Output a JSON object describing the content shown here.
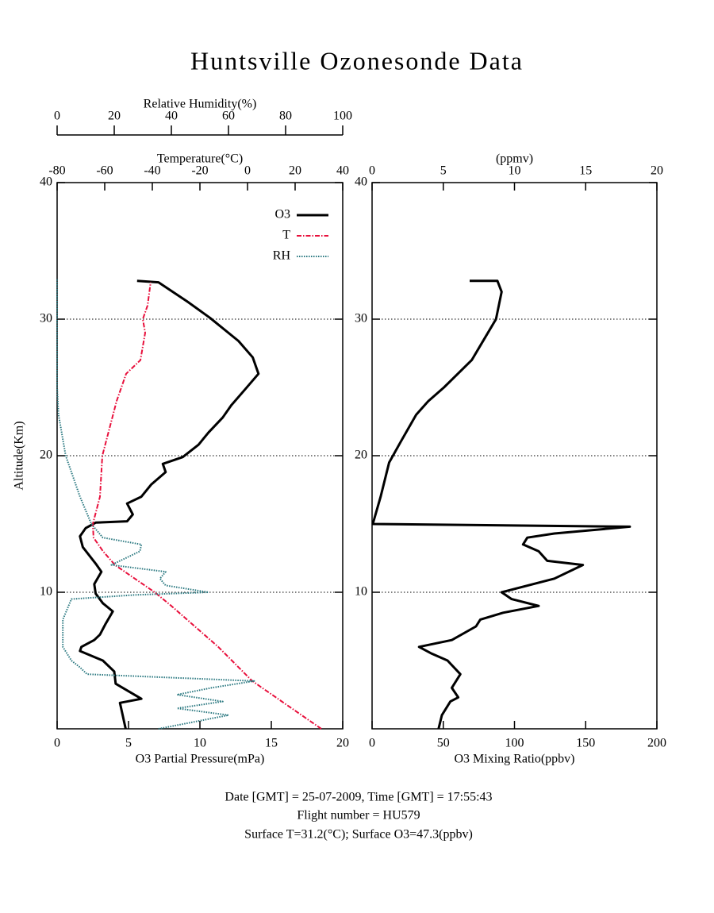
{
  "title": "Huntsville Ozonesonde Data",
  "footer": [
    "Date [GMT] = 25-07-2009,  Time [GMT] = 17:55:43",
    "Flight number = HU579",
    "Surface T=31.2(°C); Surface O3=47.3(ppbv)"
  ],
  "chart_data": [
    {
      "type": "line",
      "ylabel": "Altitude(Km)",
      "ylim": [
        0,
        40
      ],
      "yticks": [
        10,
        20,
        30,
        40
      ],
      "grid": true,
      "legend": "upper right",
      "xlabel": "O3 Partial Pressure(mPa)",
      "xlim": [
        0,
        20
      ],
      "xticks": [
        0,
        5,
        10,
        15,
        20
      ],
      "x2label": "Temperature(°C)",
      "x2lim": [
        -80,
        40
      ],
      "x2ticks": [
        -80,
        -60,
        -40,
        -20,
        0,
        20,
        40
      ],
      "x3label": "Relative Humidity(%)",
      "x3lim": [
        0,
        100
      ],
      "x3ticks": [
        0,
        20,
        40,
        60,
        80,
        100
      ],
      "series": [
        {
          "name": "O3",
          "color": "#000000",
          "style": "solid",
          "axis": "x",
          "altitude": [
            0,
            1.9,
            2.2,
            3.3,
            4.2,
            5.0,
            5.7,
            6.0,
            6.5,
            6.9,
            7.7,
            8.6,
            9.2,
            9.9,
            10.6,
            11.5,
            12.1,
            13.3,
            14.1,
            14.7,
            15.1,
            15.2,
            15.7,
            16.5,
            17.0,
            17.9,
            18.8,
            19.4,
            19.9,
            20.8,
            21.7,
            22.8,
            23.7,
            24.9,
            26.0,
            27.2,
            28.4,
            30.1,
            31.3,
            32.7,
            32.8
          ],
          "values": [
            4.8,
            4.4,
            5.9,
            4.1,
            4.0,
            3.2,
            1.6,
            1.7,
            2.6,
            3.0,
            3.4,
            3.9,
            3.2,
            2.7,
            2.6,
            3.1,
            2.7,
            1.8,
            1.6,
            2.0,
            2.7,
            4.9,
            5.3,
            4.9,
            5.9,
            6.6,
            7.6,
            7.4,
            8.8,
            9.9,
            10.6,
            11.6,
            12.2,
            13.2,
            14.1,
            13.7,
            12.7,
            10.7,
            9.1,
            7.1,
            5.6
          ]
        },
        {
          "name": "T",
          "color": "#e8103c",
          "style": "dashdot",
          "axis": "x2",
          "altitude": [
            0,
            3.5,
            6,
            9,
            10,
            12,
            13,
            14,
            15,
            17,
            20,
            22,
            24,
            26,
            27,
            29,
            30,
            31,
            32.7
          ],
          "values": [
            31,
            2,
            -12.3,
            -32,
            -39,
            -55.7,
            -60.7,
            -64.7,
            -65,
            -62,
            -61,
            -58,
            -55,
            -51,
            -45,
            -43,
            -44,
            -42,
            -40.7
          ]
        },
        {
          "name": "RH",
          "color": "#2a7880",
          "style": "dotted",
          "axis": "x3",
          "altitude": [
            0,
            1,
            1.5,
            2,
            2.5,
            3,
            3.5,
            4,
            4.5,
            5,
            6,
            8,
            9.5,
            9.8,
            10,
            10.5,
            11,
            11.5,
            12,
            13,
            13.5,
            14,
            15,
            17,
            20,
            23,
            25,
            33
          ],
          "values": [
            35.5,
            60,
            42,
            58,
            42,
            54,
            69,
            10.5,
            8,
            5,
            2,
            2,
            5,
            27,
            53,
            38,
            36,
            38,
            19,
            29,
            29.5,
            16,
            12,
            8,
            3,
            0.5,
            0,
            0
          ]
        }
      ]
    },
    {
      "type": "line",
      "ylim": [
        0,
        40
      ],
      "yticks": [
        10,
        20,
        30,
        40
      ],
      "grid": true,
      "xlabel": "O3 Mixing Ratio(ppbv)",
      "xlim": [
        0,
        200
      ],
      "xticks": [
        0,
        50,
        100,
        150,
        200
      ],
      "x2label": "(ppmv)",
      "x2lim": [
        0,
        20
      ],
      "x2ticks": [
        0,
        5,
        10,
        15,
        20
      ],
      "series": [
        {
          "color": "#000000",
          "style": "solid",
          "axis": "x",
          "altitude": [
            0,
            1,
            2,
            2.3,
            3,
            4,
            5,
            5.5,
            6,
            6.5,
            7.5,
            8,
            8.5,
            9,
            9.5,
            10,
            11,
            12,
            12.3,
            13,
            13.5,
            14,
            14.3,
            14.8,
            15,
            17,
            19.5,
            21,
            23,
            24,
            25,
            27,
            28.5,
            30,
            32,
            32.8,
            32.8
          ],
          "values": [
            46.7,
            49,
            55,
            60.5,
            56,
            62,
            53,
            42,
            33,
            56,
            73,
            76,
            92,
            117,
            98,
            91,
            128,
            148,
            123,
            117,
            106,
            109,
            128,
            181,
            0.5,
            6,
            12,
            20,
            31,
            39.5,
            50.5,
            70,
            78.5,
            87,
            91,
            88,
            68.5
          ]
        }
      ]
    }
  ]
}
